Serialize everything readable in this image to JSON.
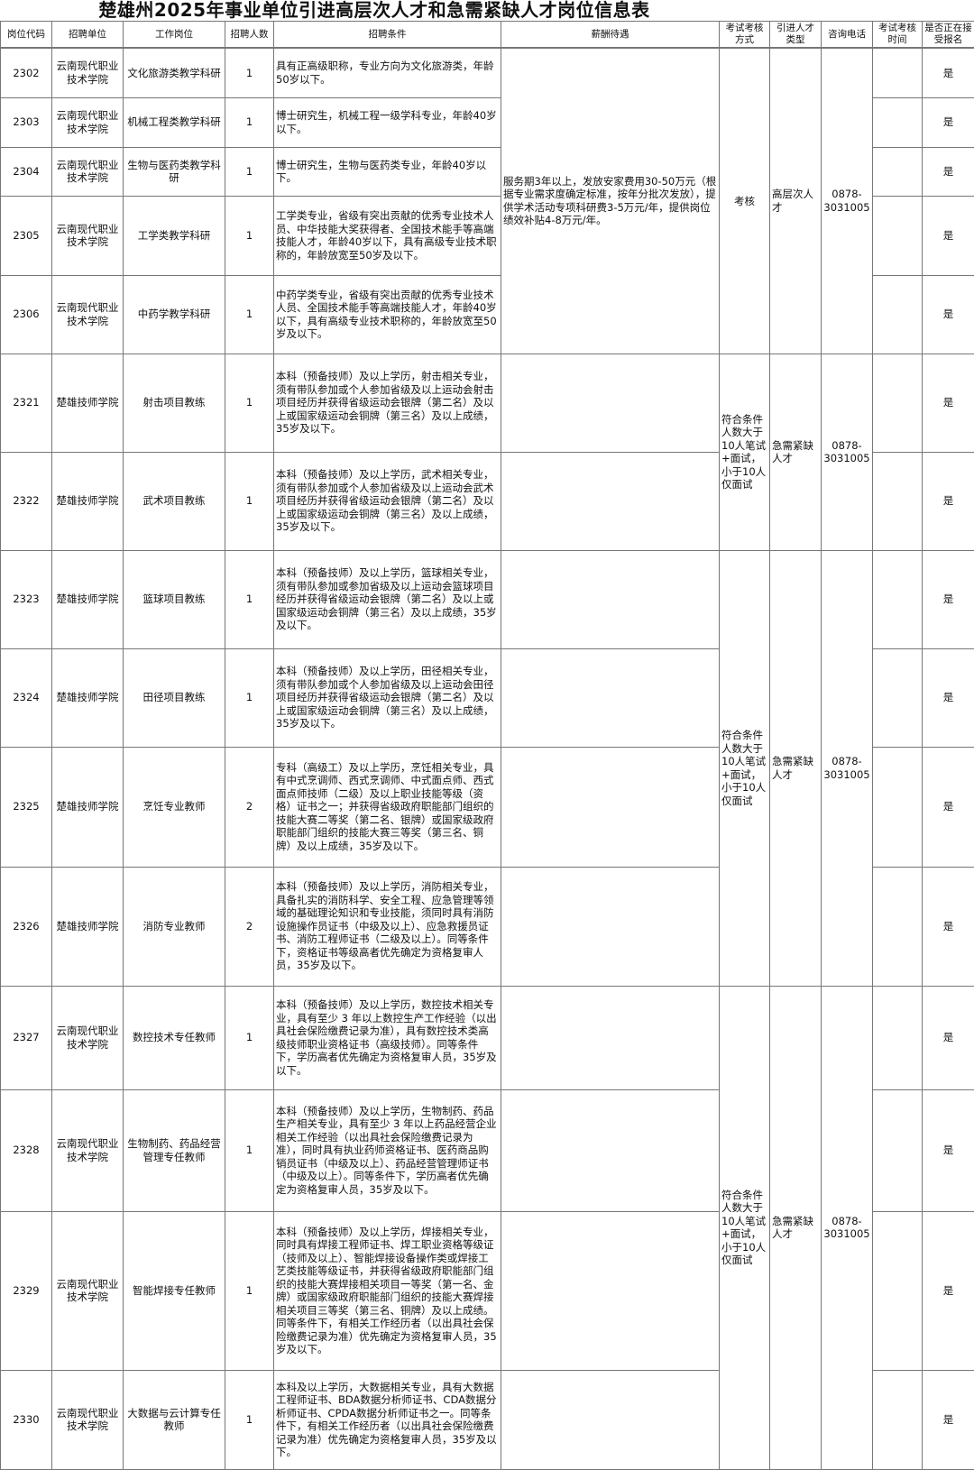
{
  "title": "楚雄州2025年事业单位引进高层次人才和急需紧缺人才岗位信息表",
  "headers": [
    "岗位代码",
    "招聘单位",
    "工作岗位",
    "招聘人数",
    "招聘条件",
    "薪酬待遇",
    "考试考核方式",
    "引进人才类型",
    "咨询电话",
    "考试考核时间",
    "是否正在接受报名"
  ],
  "rows": [
    {
      "code": "2302",
      "unit": "云南现代职业技术学院",
      "post": "文化旅游类教学科研",
      "count": "1",
      "cond": "具有正高级职称，专业方向为文化旅游类，年龄50岁以下。",
      "accepting": "是"
    },
    {
      "code": "2303",
      "unit": "云南现代职业技术学院",
      "post": "机械工程类教学科研",
      "count": "1",
      "cond": "博士研究生，机械工程一级学科专业，年龄40岁以下。",
      "accepting": "是"
    },
    {
      "code": "2304",
      "unit": "云南现代职业技术学院",
      "post": "生物与医药类教学科研",
      "count": "1",
      "cond": "博士研究生，生物与医药类专业，年龄40岁以下。",
      "accepting": "是"
    },
    {
      "code": "2305",
      "unit": "云南现代职业技术学院",
      "post": "工学类教学科研",
      "count": "1",
      "cond": "工学类专业，省级有突出贡献的优秀专业技术人员、中华技能大奖获得者、全国技术能手等高端技能人才，年龄40岁以下，具有高级专业技术职称的，年龄放宽至50岁及以下。",
      "accepting": "是"
    },
    {
      "code": "2306",
      "unit": "云南现代职业技术学院",
      "post": "中药学教学科研",
      "count": "1",
      "cond": "中药学类专业，省级有突出贡献的优秀专业技术人员、全国技术能手等高端技能人才，年龄40岁以下，具有高级专业技术职称的，年龄放宽至50岁及以下。",
      "accepting": "是"
    },
    {
      "code": "2321",
      "unit": "楚雄技师学院",
      "post": "射击项目教练",
      "count": "1",
      "cond": "本科（预备技师）及以上学历，射击相关专业，须有带队参加或个人参加省级及以上运动会射击项目经历并获得省级运动会银牌（第二名）及以上或国家级运动会铜牌（第三名）及以上成绩，35岁及以下。",
      "accepting": "是"
    },
    {
      "code": "2322",
      "unit": "楚雄技师学院",
      "post": "武术项目教练",
      "count": "1",
      "cond": "本科（预备技师）及以上学历，武术相关专业，须有带队参加或个人参加省级及以上运动会武术项目经历并获得省级运动会银牌（第二名）及以上或国家级运动会铜牌（第三名）及以上成绩，35岁及以下。",
      "accepting": "是"
    },
    {
      "code": "2323",
      "unit": "楚雄技师学院",
      "post": "篮球项目教练",
      "count": "1",
      "cond": "本科（预备技师）及以上学历，篮球相关专业，须有带队参加或参加省级及以上运动会篮球项目经历并获得省级运动会银牌（第二名）及以上或国家级运动会铜牌（第三名）及以上成绩，35岁及以下。",
      "accepting": "是"
    },
    {
      "code": "2324",
      "unit": "楚雄技师学院",
      "post": "田径项目教练",
      "count": "1",
      "cond": "本科（预备技师）及以上学历，田径相关专业，须有带队参加或个人参加省级及以上运动会田径项目经历并获得省级运动会银牌（第二名）及以上或国家级运动会铜牌（第三名）及以上成绩，35岁及以下。",
      "accepting": "是"
    },
    {
      "code": "2325",
      "unit": "楚雄技师学院",
      "post": "烹饪专业教师",
      "count": "2",
      "cond": "专科（高级工）及以上学历，烹饪相关专业，具有中式烹调师、西式烹调师、中式面点师、西式面点师技师（二级）及以上职业技能等级（资格）证书之一；并获得省级政府职能部门组织的技能大赛二等奖（第二名、银牌）或国家级政府职能部门组织的技能大赛三等奖（第三名、铜牌）及以上成绩，35岁及以下。",
      "accepting": "是"
    },
    {
      "code": "2326",
      "unit": "楚雄技师学院",
      "post": "消防专业教师",
      "count": "2",
      "cond": "本科（预备技师）及以上学历，消防相关专业，具备扎实的消防科学、安全工程、应急管理等领域的基础理论知识和专业技能，须同时具有消防设施操作员证书（中级及以上）、应急救援员证书、消防工程师证书（二级及以上）。同等条件下，资格证书等级高者优先确定为资格复审人员，35岁及以下。",
      "accepting": "是"
    },
    {
      "code": "2327",
      "unit": "云南现代职业技术学院",
      "post": "数控技术专任教师",
      "count": "1",
      "cond": "本科（预备技师）及以上学历，数控技术相关专业，具有至少 3 年以上数控生产工作经验（以出具社会保险缴费记录为准），具有数控技术类高级技师职业资格证书（高级技师）。同等条件下，学历高者优先确定为资格复审人员，35岁及以下。",
      "accepting": "是"
    },
    {
      "code": "2328",
      "unit": "云南现代职业技术学院",
      "post": "生物制药、药品经营管理专任教师",
      "count": "1",
      "cond": "本科（预备技师）及以上学历，生物制药、药品生产相关专业，具有至少 3 年以上药品经营企业相关工作经验（以出具社会保险缴费记录为准），同时具有执业药师资格证书、医药商品购销员证书（中级及以上）、药品经营管理师证书（中级及以上）。同等条件下，学历高者优先确定为资格复审人员，35岁及以下。",
      "accepting": "是"
    },
    {
      "code": "2329",
      "unit": "云南现代职业技术学院",
      "post": "智能焊接专任教师",
      "count": "1",
      "cond": "本科（预备技师）及以上学历，焊接相关专业，同时具有焊接工程师证书、焊工职业资格等级证（技师及以上）、智能焊接设备操作类或焊接工艺类技能等级证书，并获得省级政府职能部门组织的技能大赛焊接相关项目一等奖（第一名、金牌）或国家级政府职能部门组织的技能大赛焊接相关项目三等奖（第三名、铜牌）及以上成绩。同等条件下，有相关工作经历者（以出具社会保险缴费记录为准）优先确定为资格复审人员，35岁及以下。",
      "accepting": "是"
    },
    {
      "code": "2330",
      "unit": "云南现代职业技术学院",
      "post": "大数据与云计算专任教师",
      "count": "1",
      "cond": "本科及以上学历，大数据相关专业，具有大数据工程师证书、BDA数据分析师证书、CDA数据分析师证书、CPDA数据分析师证书之一。同等条件下，有相关工作经历者（以出具社会保险缴费记录为准）优先确定为资格复审人员，35岁及以下。",
      "accepting": "是"
    }
  ],
  "groups": [
    {
      "salary": "服务期3年以上，发放安家费用30-50万元（根据专业需求度确定标准，按年分批次发放），提供学术活动专项科研费3-5万元/年，提供岗位绩效补贴4-8万元/年。",
      "exam": "考核",
      "type": "高层次人才",
      "phone": "0878-3031005"
    },
    {
      "exam": "符合条件人数大于10人笔试+面试，小于10人仅面试",
      "type": "急需紧缺人才",
      "phone": "0878-3031005"
    },
    {
      "exam": "符合条件人数大于10人笔试+面试，小于10人仅面试",
      "type": "急需紧缺人才",
      "phone": "0878-3031005"
    },
    {
      "exam": "符合条件人数大于10人笔试+面试，小于10人仅面试",
      "type": "急需紧缺人才",
      "phone": "0878-3031005"
    }
  ]
}
